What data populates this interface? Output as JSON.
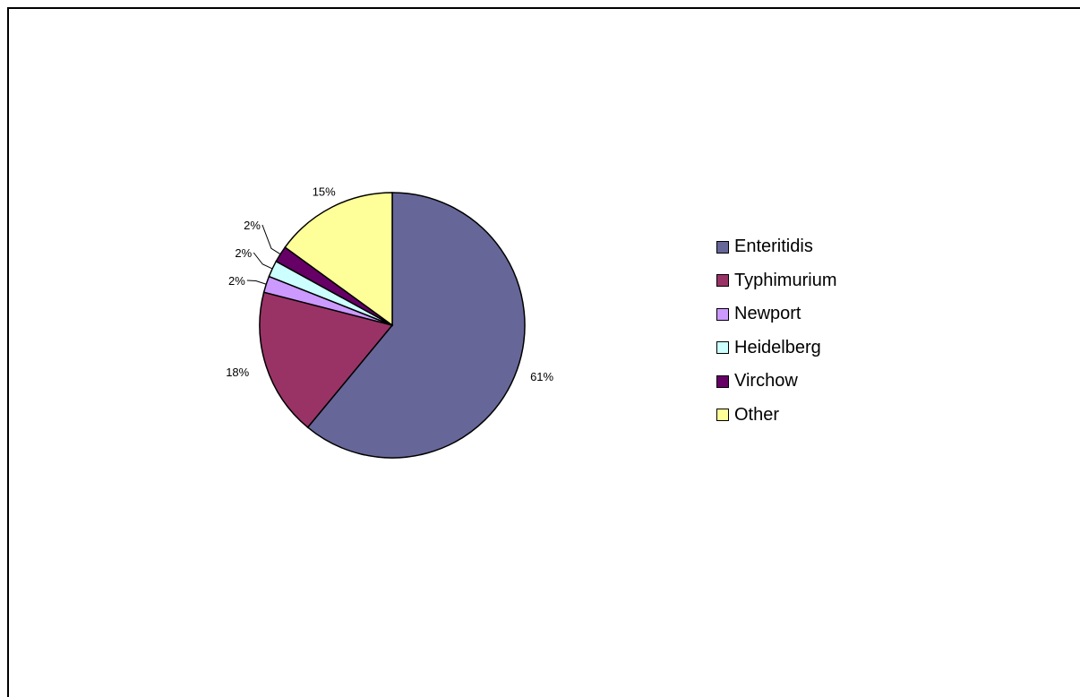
{
  "chart_data": {
    "type": "pie",
    "title": "",
    "slices": [
      {
        "name": "Enteritidis",
        "value": 61,
        "label": "61%",
        "color": "#666699"
      },
      {
        "name": "Typhimurium",
        "value": 18,
        "label": "18%",
        "color": "#993366"
      },
      {
        "name": "Newport",
        "value": 2,
        "label": "2%",
        "color": "#cc99ff"
      },
      {
        "name": "Heidelberg",
        "value": 2,
        "label": "2%",
        "color": "#ccffff"
      },
      {
        "name": "Virchow",
        "value": 2,
        "label": "2%",
        "color": "#660066"
      },
      {
        "name": "Other",
        "value": 15,
        "label": "15%",
        "color": "#ffff99"
      }
    ],
    "legend_position": "right"
  }
}
